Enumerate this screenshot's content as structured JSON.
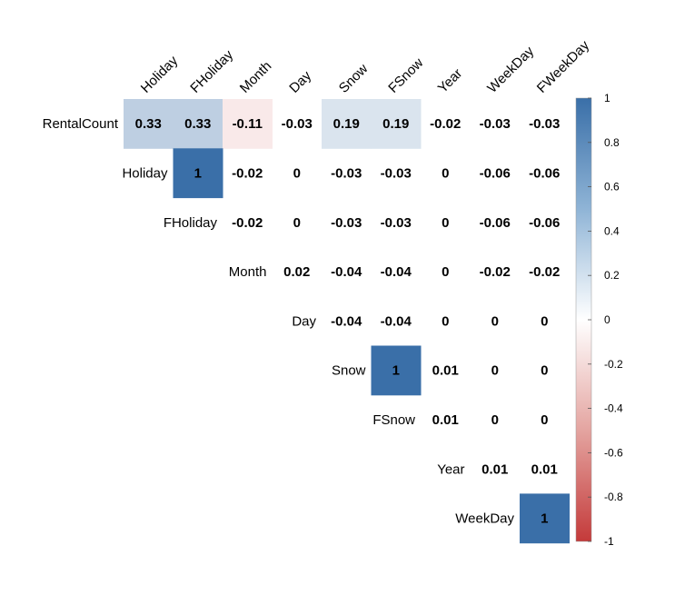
{
  "chart_data": {
    "type": "heatmap",
    "title": "",
    "columns": [
      "Holiday",
      "FHoliday",
      "Month",
      "Day",
      "Snow",
      "FSnow",
      "Year",
      "WeekDay",
      "FWeekDay"
    ],
    "rows": [
      "RentalCount",
      "Holiday",
      "FHoliday",
      "Month",
      "Day",
      "Snow",
      "FSnow",
      "Year",
      "WeekDay"
    ],
    "values": [
      [
        "0.33",
        "0.33",
        "-0.11",
        "-0.03",
        "0.19",
        "0.19",
        "-0.02",
        "-0.03",
        "-0.03"
      ],
      [
        null,
        "1",
        "-0.02",
        "0",
        "-0.03",
        "-0.03",
        "0",
        "-0.06",
        "-0.06"
      ],
      [
        null,
        null,
        "-0.02",
        "0",
        "-0.03",
        "-0.03",
        "0",
        "-0.06",
        "-0.06"
      ],
      [
        null,
        null,
        null,
        "0.02",
        "-0.04",
        "-0.04",
        "0",
        "-0.02",
        "-0.02"
      ],
      [
        null,
        null,
        null,
        null,
        "-0.04",
        "-0.04",
        "0",
        "0",
        "0"
      ],
      [
        null,
        null,
        null,
        null,
        null,
        "1",
        "0.01",
        "0",
        "0"
      ],
      [
        null,
        null,
        null,
        null,
        null,
        null,
        "0.01",
        "0",
        "0"
      ],
      [
        null,
        null,
        null,
        null,
        null,
        null,
        null,
        "0.01",
        "0.01"
      ],
      [
        null,
        null,
        null,
        null,
        null,
        null,
        null,
        null,
        "1"
      ]
    ],
    "color_scale": {
      "min": -1,
      "max": 1,
      "low_color": "#c43a3a",
      "mid_color": "#ffffff",
      "high_color": "#3a6fa8",
      "ticks": [
        "1",
        "0.8",
        "0.6",
        "0.4",
        "0.2",
        "0",
        "-0.2",
        "-0.4",
        "-0.6",
        "-0.8",
        "-1"
      ]
    },
    "shade_threshold": 0.1,
    "legend": "right"
  }
}
